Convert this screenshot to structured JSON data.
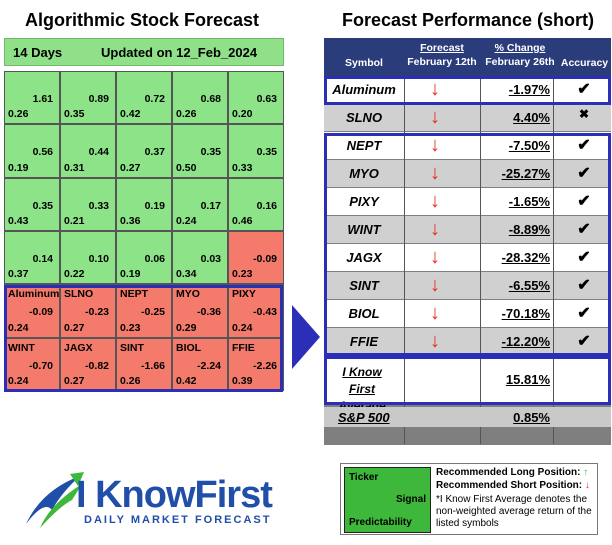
{
  "left": {
    "title": "Algorithmic Stock Forecast",
    "days": "14 Days",
    "updated": "Updated on 12_Feb_2024",
    "grid": [
      [
        {
          "sym": "",
          "sig": "1.61",
          "pred": "0.26",
          "c": "g"
        },
        {
          "sym": "",
          "sig": "0.89",
          "pred": "0.35",
          "c": "g"
        },
        {
          "sym": "",
          "sig": "0.72",
          "pred": "0.42",
          "c": "g"
        },
        {
          "sym": "",
          "sig": "0.68",
          "pred": "0.26",
          "c": "g"
        },
        {
          "sym": "",
          "sig": "0.63",
          "pred": "0.20",
          "c": "g"
        }
      ],
      [
        {
          "sym": "",
          "sig": "0.56",
          "pred": "0.19",
          "c": "g"
        },
        {
          "sym": "",
          "sig": "0.44",
          "pred": "0.31",
          "c": "g"
        },
        {
          "sym": "",
          "sig": "0.37",
          "pred": "0.27",
          "c": "g"
        },
        {
          "sym": "",
          "sig": "0.35",
          "pred": "0.50",
          "c": "g"
        },
        {
          "sym": "",
          "sig": "0.35",
          "pred": "0.33",
          "c": "g"
        }
      ],
      [
        {
          "sym": "",
          "sig": "0.35",
          "pred": "0.43",
          "c": "g"
        },
        {
          "sym": "",
          "sig": "0.33",
          "pred": "0.21",
          "c": "g"
        },
        {
          "sym": "",
          "sig": "0.19",
          "pred": "0.36",
          "c": "g"
        },
        {
          "sym": "",
          "sig": "0.17",
          "pred": "0.24",
          "c": "g"
        },
        {
          "sym": "",
          "sig": "0.16",
          "pred": "0.46",
          "c": "g"
        }
      ],
      [
        {
          "sym": "",
          "sig": "0.14",
          "pred": "0.37",
          "c": "g"
        },
        {
          "sym": "",
          "sig": "0.10",
          "pred": "0.22",
          "c": "g"
        },
        {
          "sym": "",
          "sig": "0.06",
          "pred": "0.19",
          "c": "g"
        },
        {
          "sym": "",
          "sig": "0.03",
          "pred": "0.34",
          "c": "g"
        },
        {
          "sym": "",
          "sig": "-0.09",
          "pred": "0.23",
          "c": "r"
        }
      ],
      [
        {
          "sym": "Aluminum",
          "sig": "-0.09",
          "pred": "0.24",
          "c": "r"
        },
        {
          "sym": "SLNO",
          "sig": "-0.23",
          "pred": "0.27",
          "c": "r"
        },
        {
          "sym": "NEPT",
          "sig": "-0.25",
          "pred": "0.23",
          "c": "r"
        },
        {
          "sym": "MYO",
          "sig": "-0.36",
          "pred": "0.29",
          "c": "r"
        },
        {
          "sym": "PIXY",
          "sig": "-0.43",
          "pred": "0.24",
          "c": "r"
        }
      ],
      [
        {
          "sym": "WINT",
          "sig": "-0.70",
          "pred": "0.24",
          "c": "r"
        },
        {
          "sym": "JAGX",
          "sig": "-0.82",
          "pred": "0.27",
          "c": "r"
        },
        {
          "sym": "SINT",
          "sig": "-1.66",
          "pred": "0.26",
          "c": "r"
        },
        {
          "sym": "BIOL",
          "sig": "-2.24",
          "pred": "0.42",
          "c": "r"
        },
        {
          "sym": "FFIE",
          "sig": "-2.26",
          "pred": "0.39",
          "c": "r"
        }
      ]
    ]
  },
  "right": {
    "title": "Forecast Performance (short)",
    "headers": {
      "symbol": "Symbol",
      "forecast": "Forecast",
      "forecast_date": "February 12th",
      "change": "% Change",
      "change_date": "February 26th",
      "accuracy": "Accuracy"
    },
    "rows": [
      {
        "sym": "Aluminum",
        "arrow": "↓",
        "pct": "-1.97%",
        "acc": "✔"
      },
      {
        "sym": "SLNO",
        "arrow": "↓",
        "pct": "4.40%",
        "acc": "✖"
      },
      {
        "sym": "NEPT",
        "arrow": "↓",
        "pct": "-7.50%",
        "acc": "✔"
      },
      {
        "sym": "MYO",
        "arrow": "↓",
        "pct": "-25.27%",
        "acc": "✔"
      },
      {
        "sym": "PIXY",
        "arrow": "↓",
        "pct": "-1.65%",
        "acc": "✔"
      },
      {
        "sym": "WINT",
        "arrow": "↓",
        "pct": "-8.89%",
        "acc": "✔"
      },
      {
        "sym": "JAGX",
        "arrow": "↓",
        "pct": "-28.32%",
        "acc": "✔"
      },
      {
        "sym": "SINT",
        "arrow": "↓",
        "pct": "-6.55%",
        "acc": "✔"
      },
      {
        "sym": "BIOL",
        "arrow": "↓",
        "pct": "-70.18%",
        "acc": "✔"
      },
      {
        "sym": "FFIE",
        "arrow": "↓",
        "pct": "-12.20%",
        "acc": "✔"
      }
    ],
    "average": {
      "line1": "I Know First",
      "line2": "Average",
      "pct": "15.81%"
    },
    "sp500": {
      "label": "S&P 500",
      "pct": "0.85%"
    }
  },
  "legend": {
    "ticker": "Ticker",
    "signal": "Signal",
    "predictability": "Predictability",
    "long": "Recommended Long Position:",
    "long_arrow": "↑",
    "short": "Recommended Short Position:",
    "short_arrow": "↓",
    "note": "*I Know First Average denotes the non-weighted average return of the listed symbols"
  },
  "logo": {
    "brand": "I KnowFirst",
    "tagline": "DAILY MARKET FORECAST"
  },
  "colors": {
    "green": "#8de387",
    "red": "#f47a6c",
    "navy": "#2b3c7a",
    "box": "#2b2fb7"
  }
}
